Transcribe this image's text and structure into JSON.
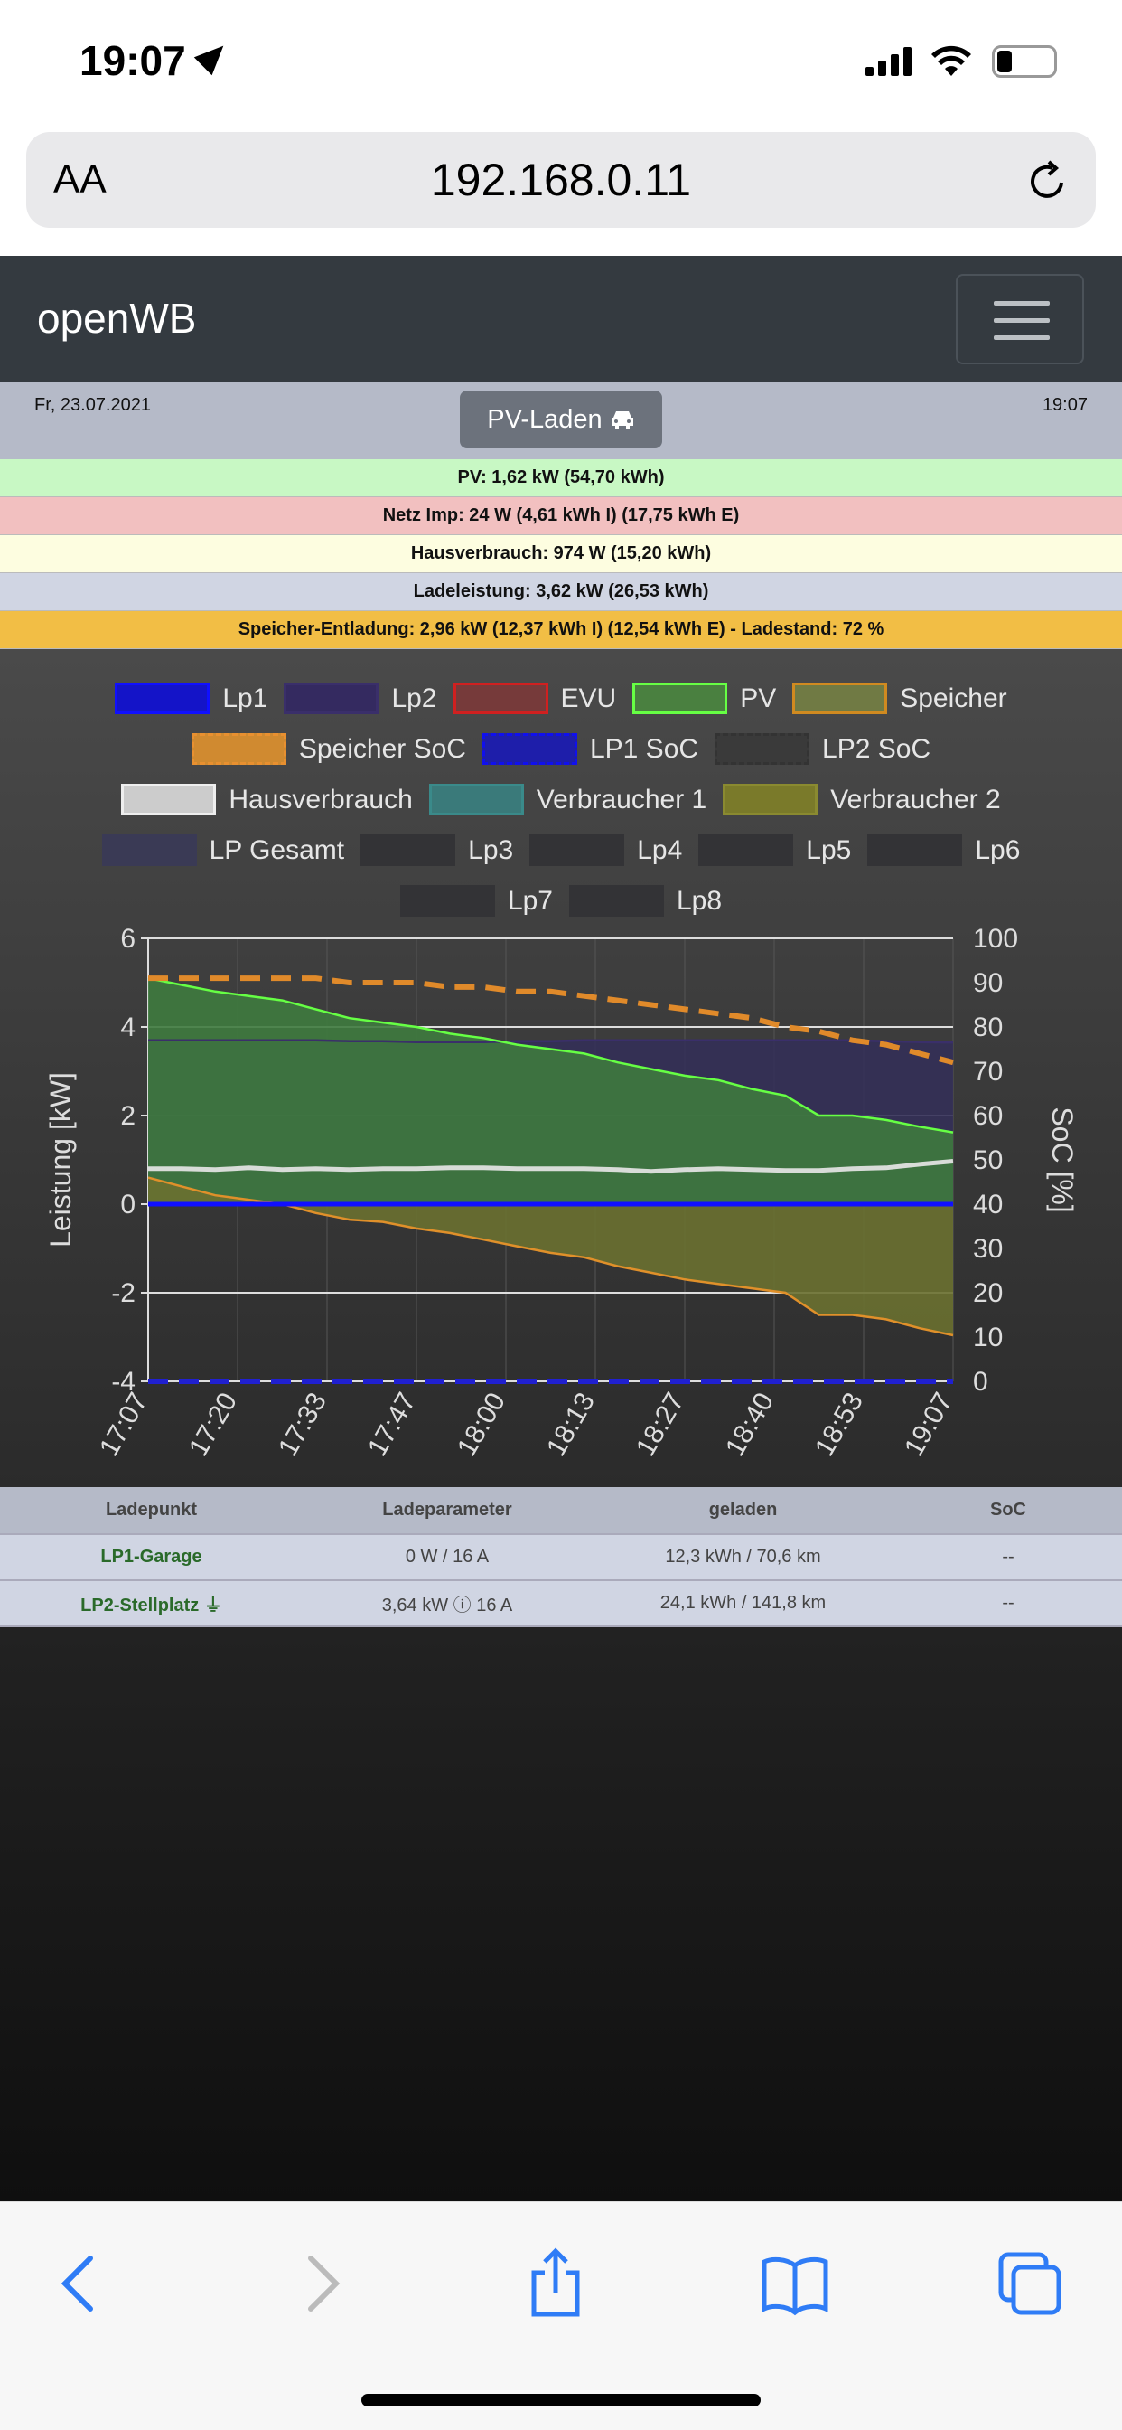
{
  "status": {
    "time": "19:07"
  },
  "browser": {
    "aa": "AA",
    "url": "192.168.0.11"
  },
  "nav": {
    "brand": "openWB"
  },
  "info": {
    "date": "Fr, 23.07.2021",
    "time": "19:07",
    "mode": "PV-Laden"
  },
  "rows": [
    {
      "text": "PV: 1,62 kW (54,70 kWh)",
      "color": "#c8f8c4"
    },
    {
      "text": "Netz Imp: 24 W (4,61 kWh I) (17,75 kWh E)",
      "color": "#f2c0c0"
    },
    {
      "text": "Hausverbrauch: 974 W (15,20 kWh)",
      "color": "#fdfde0"
    },
    {
      "text": "Ladeleistung: 3,62 kW (26,53 kWh)",
      "color": "#d0d5e3"
    },
    {
      "text": "Speicher-Entladung: 2,96 kW (12,37 kWh I) (12,54 kWh E) - Ladestand: 72 %",
      "color": "#f2be45"
    }
  ],
  "legend": [
    [
      {
        "label": "Lp1",
        "fill": "#1414c8",
        "border": "#1010ff"
      },
      {
        "label": "Lp2",
        "fill": "#342a60",
        "border": "#3a2f6a"
      },
      {
        "label": "EVU",
        "fill": "#763a3a",
        "border": "#d02020"
      },
      {
        "label": "PV",
        "fill": "#4a8040",
        "border": "#66ff44"
      },
      {
        "label": "Speicher",
        "fill": "#707a44",
        "border": "#d08a20"
      }
    ],
    [
      {
        "label": "Speicher SoC",
        "fill": "#d08a30",
        "border": "#e89030",
        "dashed": true
      },
      {
        "label": "LP1 SoC",
        "fill": "#1e1eaa",
        "border": "#1010ee",
        "dashed": true
      },
      {
        "label": "LP2 SoC",
        "fill": "#3a3a3a",
        "border": "#333",
        "dashed": true
      }
    ],
    [
      {
        "label": "Hausverbrauch",
        "fill": "#cccccc",
        "border": "#eeeeee"
      },
      {
        "label": "Verbraucher 1",
        "fill": "#3a7a7a",
        "border": "#3a8a8a"
      },
      {
        "label": "Verbraucher 2",
        "fill": "#7a7a2a",
        "border": "#8a8a30"
      }
    ],
    [
      {
        "label": "LP Gesamt",
        "fill": "#3a3a55",
        "border": "#3a3a55"
      },
      {
        "label": "Lp3",
        "fill": "#333336",
        "border": "#333336"
      },
      {
        "label": "Lp4",
        "fill": "#333336",
        "border": "#333336"
      },
      {
        "label": "Lp5",
        "fill": "#333336",
        "border": "#333336"
      },
      {
        "label": "Lp6",
        "fill": "#333336",
        "border": "#333336"
      }
    ],
    [
      {
        "label": "Lp7",
        "fill": "#333336",
        "border": "#333336"
      },
      {
        "label": "Lp8",
        "fill": "#333336",
        "border": "#333336"
      }
    ]
  ],
  "chart_data": {
    "type": "area",
    "ylabel": "Leistung [kW]",
    "y2label": "SoC [%]",
    "ylim": [
      -4,
      6
    ],
    "y2lim": [
      0,
      100
    ],
    "yticks": [
      "6",
      "4",
      "2",
      "0",
      "-2",
      "-4"
    ],
    "y2ticks": [
      "100",
      "90",
      "80",
      "70",
      "60",
      "50",
      "40",
      "30",
      "20",
      "10",
      "0"
    ],
    "xticks": [
      "17:07",
      "17:20",
      "17:33",
      "17:47",
      "18:00",
      "18:13",
      "18:27",
      "18:40",
      "18:53",
      "19:07"
    ],
    "x_minutes": [
      0,
      5,
      10,
      15,
      20,
      25,
      30,
      35,
      40,
      45,
      50,
      55,
      60,
      65,
      70,
      75,
      80,
      85,
      90,
      95,
      100,
      105,
      110,
      115,
      120
    ],
    "series": [
      {
        "name": "Lp2",
        "color": "#3a2f6a",
        "fill": "#343058",
        "values": [
          3.7,
          3.7,
          3.7,
          3.7,
          3.7,
          3.7,
          3.68,
          3.68,
          3.66,
          3.66,
          3.66,
          3.68,
          3.68,
          3.7,
          3.7,
          3.7,
          3.7,
          3.7,
          3.7,
          3.7,
          3.7,
          3.7,
          3.68,
          3.66,
          3.65
        ]
      },
      {
        "name": "PV",
        "color": "#66ff44",
        "fill": "#3e7a3e",
        "values": [
          5.1,
          4.95,
          4.8,
          4.7,
          4.6,
          4.4,
          4.2,
          4.1,
          4.0,
          3.85,
          3.75,
          3.6,
          3.5,
          3.4,
          3.2,
          3.05,
          2.9,
          2.8,
          2.6,
          2.45,
          2.0,
          2.0,
          1.9,
          1.75,
          1.62
        ]
      },
      {
        "name": "Speicher",
        "color": "#e0902a",
        "fill": "#6a7030",
        "values": [
          0.6,
          0.4,
          0.2,
          0.1,
          0.0,
          -0.2,
          -0.35,
          -0.4,
          -0.55,
          -0.65,
          -0.8,
          -0.95,
          -1.1,
          -1.2,
          -1.4,
          -1.55,
          -1.7,
          -1.8,
          -1.9,
          -2.0,
          -2.5,
          -2.5,
          -2.6,
          -2.8,
          -2.96
        ]
      },
      {
        "name": "Hausverbrauch",
        "color": "#d8dcd8",
        "values": [
          0.8,
          0.8,
          0.78,
          0.82,
          0.78,
          0.8,
          0.78,
          0.8,
          0.8,
          0.82,
          0.82,
          0.8,
          0.8,
          0.8,
          0.78,
          0.74,
          0.78,
          0.8,
          0.78,
          0.76,
          0.76,
          0.8,
          0.82,
          0.9,
          0.97
        ]
      },
      {
        "name": "EVU",
        "color": "#d02020",
        "values": [
          0,
          0,
          0,
          0,
          0,
          0,
          0,
          0,
          0,
          0,
          0,
          0,
          0,
          0,
          0,
          0,
          0,
          0,
          0,
          0,
          0,
          0,
          0,
          0,
          0
        ]
      },
      {
        "name": "Lp1",
        "color": "#1010ff",
        "values": [
          0,
          0,
          0,
          0,
          0,
          0,
          0,
          0,
          0,
          0,
          0,
          0,
          0,
          0,
          0,
          0,
          0,
          0,
          0,
          0,
          0,
          0,
          0,
          0,
          0
        ]
      },
      {
        "name": "Speicher SoC",
        "color": "#e08a2a",
        "dashed": true,
        "axis": "y2",
        "values": [
          91,
          91,
          91,
          91,
          91,
          91,
          90,
          90,
          90,
          89,
          89,
          88,
          88,
          87,
          86,
          85,
          84,
          83,
          82,
          80,
          79,
          77,
          76,
          74,
          72
        ]
      },
      {
        "name": "LP1 SoC",
        "color": "#2020d0",
        "dashed": true,
        "axis": "y2",
        "values": [
          0,
          0,
          0,
          0,
          0,
          0,
          0,
          0,
          0,
          0,
          0,
          0,
          0,
          0,
          0,
          0,
          0,
          0,
          0,
          0,
          0,
          0,
          0,
          0,
          0
        ]
      }
    ]
  },
  "table": {
    "headers": [
      "Ladepunkt",
      "Ladeparameter",
      "geladen",
      "SoC"
    ],
    "rows": [
      {
        "name": "LP1-Garage",
        "param": "0 W / 16 A",
        "charged": "12,3 kWh / 70,6 km",
        "soc": "--"
      },
      {
        "name": "LP2-Stellplatz",
        "plug": "⏚",
        "param": "3,64 kW ⓘ 16 A",
        "charged": "24,1 kWh / 141,8 km",
        "soc": "--"
      }
    ]
  }
}
